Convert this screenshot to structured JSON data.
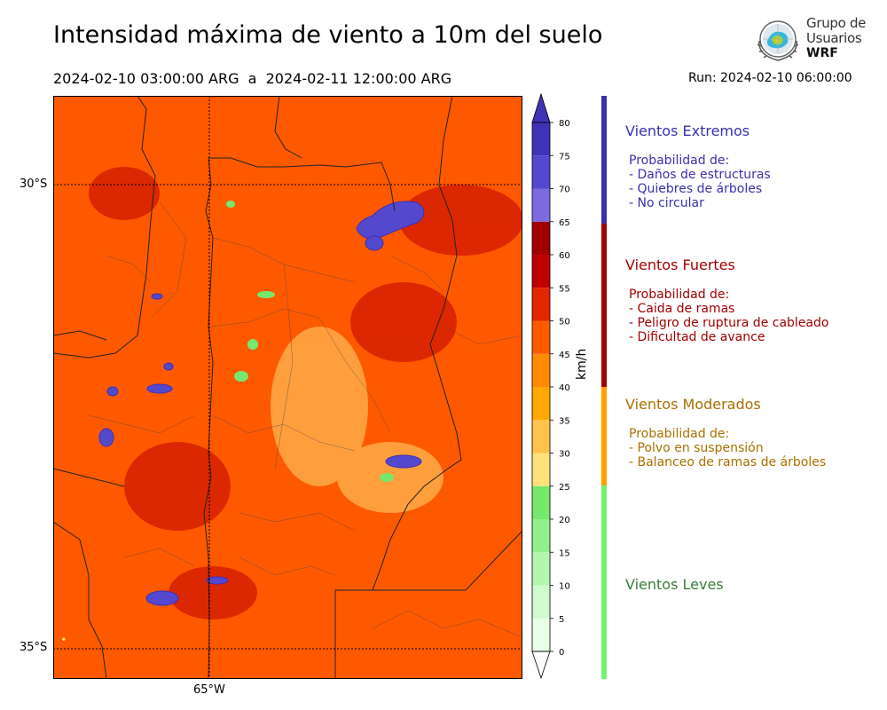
{
  "title": "Intensidad máxima de viento a 10m del suelo",
  "period": "2024-02-10 03:00:00 ARG  a  2024-02-11 12:00:00 ARG",
  "run": "Run: 2024-02-10 06:00:00",
  "logo": {
    "line1": "Grupo de",
    "line2": "Usuarios",
    "line3": "WRF"
  },
  "map": {
    "lat_labels": [
      "30°S",
      "35°S"
    ],
    "lon_labels": [
      "65°W"
    ],
    "graticule": {
      "lat": [
        -30,
        -35
      ],
      "lon": [
        -65
      ]
    },
    "extent": {
      "lon": [
        -67.0,
        -61.0
      ],
      "lat": [
        -35.3,
        -28.9
      ]
    }
  },
  "colorbar": {
    "unit": "km/h",
    "ticks": [
      0,
      5,
      10,
      15,
      20,
      25,
      30,
      35,
      40,
      45,
      50,
      55,
      60,
      65,
      70,
      75,
      80
    ],
    "colors": [
      "#e9ffe8",
      "#d1fbcf",
      "#b3f6ae",
      "#93ef8d",
      "#76e86b",
      "#ffe27a",
      "#ffc24a",
      "#ffa800",
      "#ff8a00",
      "#ff5a00",
      "#e32600",
      "#c00000",
      "#a00000",
      "#7c6ae0",
      "#5448cf",
      "#4032b6"
    ]
  },
  "categories": [
    {
      "name": "Vientos Extremos",
      "color": "#3d2fb0",
      "bar": "#3d2fb0",
      "prob": "Probabilidad de:",
      "items": [
        "- Daños de estructuras",
        "- Quiebres de árboles",
        "- No circular"
      ]
    },
    {
      "name": "Vientos Fuertes",
      "color": "#a20000",
      "bar": "#a20000",
      "prob": "Probabilidad de:",
      "items": [
        "- Caida de ramas",
        "- Peligro de ruptura de cableado",
        "- Dificultad de avance"
      ]
    },
    {
      "name": "Vientos Moderados",
      "color": "#a96f00",
      "bar": "#ff9f00",
      "prob": "Probabilidad de:",
      "items": [
        "- Polvo en suspensión",
        "- Balanceo de ramas de árboles"
      ]
    },
    {
      "name": "Vientos Leves",
      "color": "#3a7d3a",
      "bar": "#77ef6f",
      "prob": "",
      "items": []
    }
  ]
}
